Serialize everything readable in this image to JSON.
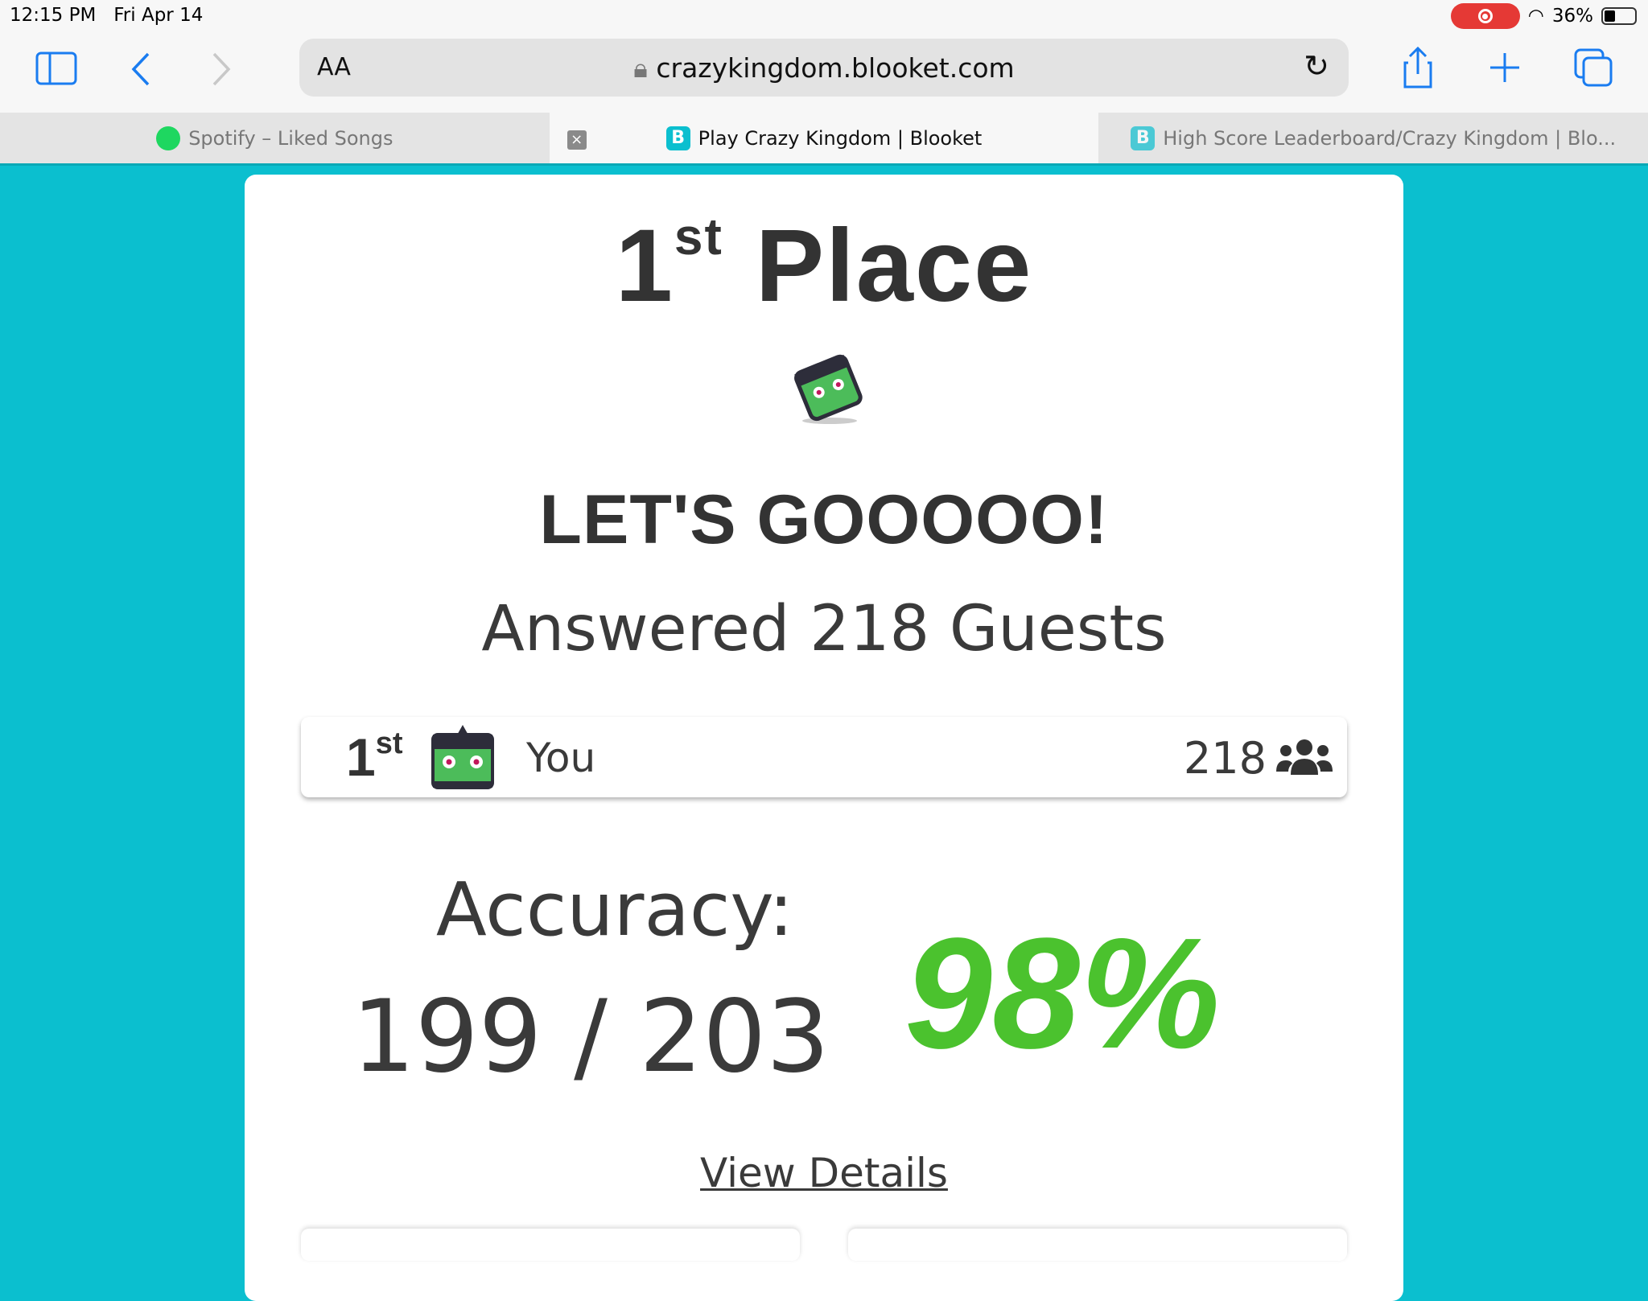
{
  "status": {
    "time": "12:15 PM",
    "date": "Fri Apr 14",
    "battery": "36%",
    "battery_level": 0.36
  },
  "browser": {
    "aa": "AA",
    "url": "crazykingdom.blooket.com",
    "tabs": [
      {
        "label": "Spotify – Liked Songs",
        "active": false
      },
      {
        "label": "Play Crazy Kingdom | Blooket",
        "active": true
      },
      {
        "label": "High Score Leaderboard/Crazy Kingdom | Blo...",
        "active": false
      }
    ],
    "fav_b": "B"
  },
  "result": {
    "place_num": "1",
    "place_suffix": "st",
    "place_word": "Place",
    "cheer": "LET'S GOOOOO!",
    "answered": "Answered 218 Guests",
    "row": {
      "place_num": "1",
      "place_suffix": "st",
      "name": "You",
      "score": "218"
    },
    "accuracy_label": "Accuracy:",
    "accuracy_fraction": "199 / 203",
    "accuracy_percent": "98%",
    "view_details": "View Details"
  },
  "colors": {
    "teal": "#0bbfcf",
    "green": "#4bc22e",
    "text": "#3a3a3a"
  }
}
